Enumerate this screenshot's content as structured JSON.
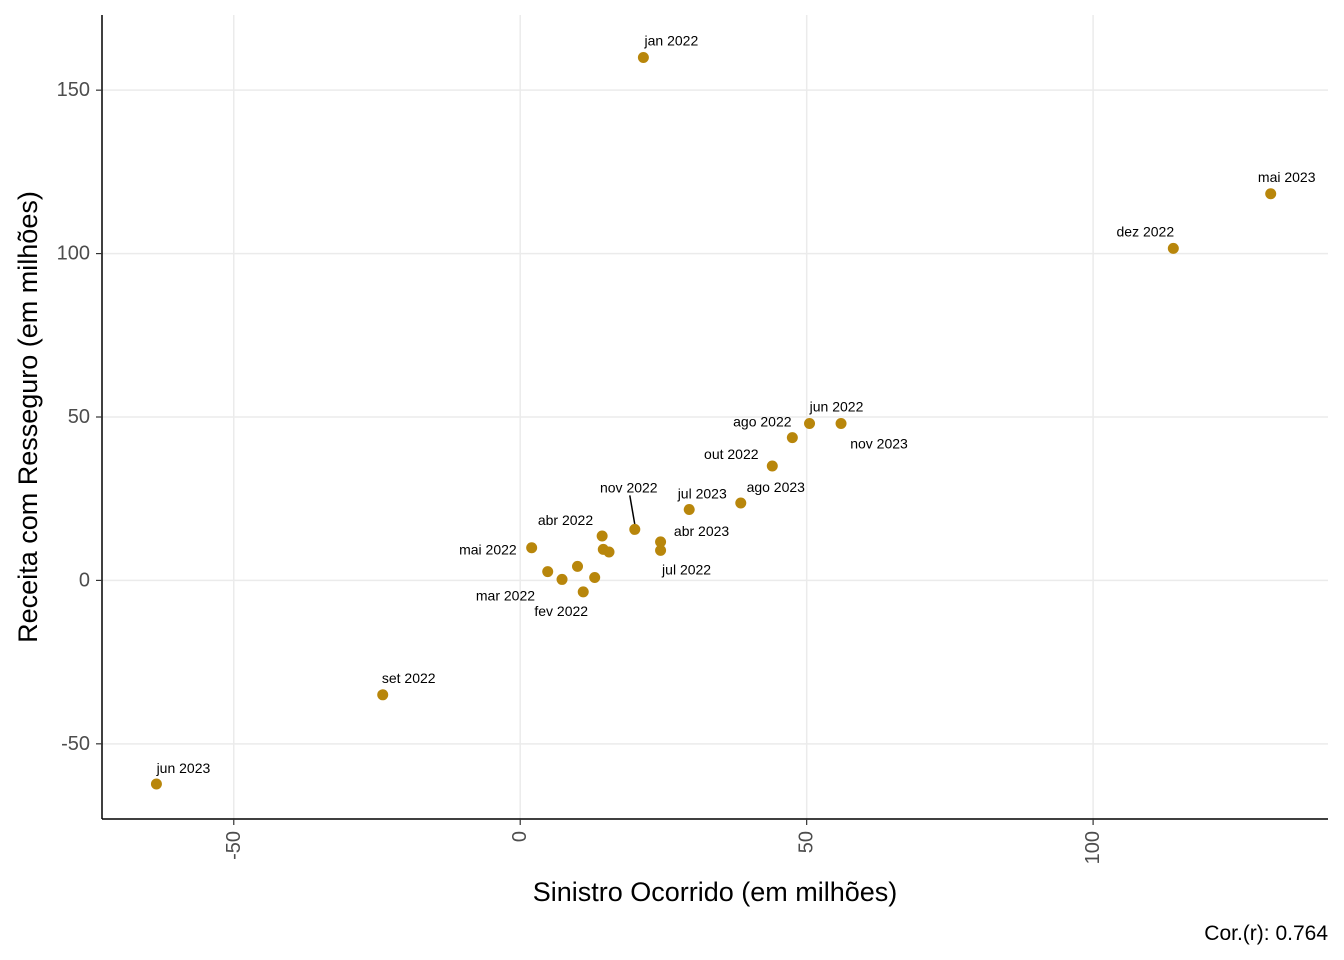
{
  "chart_data": {
    "type": "scatter",
    "xlabel": "Sinistro Ocorrido (em milhões)",
    "ylabel": "Receita com Resseguro (em milhões)",
    "caption": "Cor.(r): 0.764",
    "xlim": [
      -73,
      141
    ],
    "ylim": [
      -73,
      173
    ],
    "x_ticks": [
      -50,
      0,
      50,
      100
    ],
    "x_tick_labels": [
      "-50",
      "0",
      "50",
      "100"
    ],
    "y_ticks": [
      -50,
      0,
      50,
      100,
      150
    ],
    "y_tick_labels": [
      "-50",
      "0",
      "50",
      "100",
      "150"
    ],
    "grid": true,
    "point_color": "#B8860B",
    "points": [
      {
        "x": 21.5,
        "y": 160.0,
        "label": "jan 2022"
      },
      {
        "x": 11.0,
        "y": -3.5,
        "label": "fev 2022"
      },
      {
        "x": 7.3,
        "y": 0.3,
        "label": "mar 2022"
      },
      {
        "x": 14.3,
        "y": 13.6,
        "label": "abr 2022"
      },
      {
        "x": 2.0,
        "y": 10.0,
        "label": "mai 2022"
      },
      {
        "x": 50.5,
        "y": 48.0,
        "label": "jun 2022"
      },
      {
        "x": 24.5,
        "y": 9.2,
        "label": "jul 2022"
      },
      {
        "x": 47.5,
        "y": 43.7,
        "label": "ago 2022"
      },
      {
        "x": -24.0,
        "y": -35.0,
        "label": "set 2022"
      },
      {
        "x": 44.0,
        "y": 35.0,
        "label": "out 2022"
      },
      {
        "x": 20.0,
        "y": 15.6,
        "label": "nov 2022"
      },
      {
        "x": 114.0,
        "y": 101.6,
        "label": "dez 2022"
      },
      {
        "x": 24.5,
        "y": 11.8,
        "label": "abr 2023"
      },
      {
        "x": 131.0,
        "y": 118.3,
        "label": "mai 2023"
      },
      {
        "x": -63.5,
        "y": -62.3,
        "label": "jun 2023"
      },
      {
        "x": 29.5,
        "y": 21.7,
        "label": "jul 2023"
      },
      {
        "x": 38.5,
        "y": 23.7,
        "label": "ago 2023"
      },
      {
        "x": 56.0,
        "y": 48.0,
        "label": "nov 2023"
      },
      {
        "x": 4.8,
        "y": 2.7,
        "label": ""
      },
      {
        "x": 10.0,
        "y": 4.3,
        "label": ""
      },
      {
        "x": 13.0,
        "y": 0.9,
        "label": ""
      },
      {
        "x": 14.5,
        "y": 9.5,
        "label": ""
      },
      {
        "x": 15.5,
        "y": 8.7,
        "label": ""
      }
    ]
  }
}
